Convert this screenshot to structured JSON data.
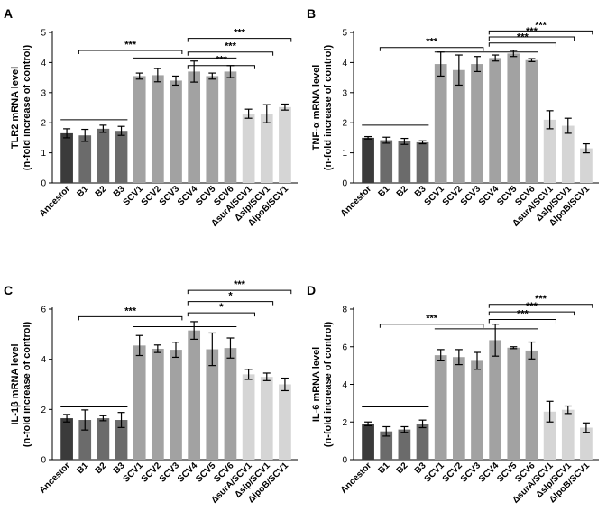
{
  "colors": {
    "dark": "#3b3b3b",
    "mid": "#6b6b6b",
    "light": "#a2a2a2",
    "pale": "#d5d5d5"
  },
  "chart_data": [
    {
      "type": "bar",
      "panel": "A",
      "title": "",
      "ylabel": [
        "TLR2 mRNA level",
        "(n-fold increase of control)"
      ],
      "ylim": [
        0,
        5
      ],
      "yticks": [
        0,
        1,
        2,
        3,
        4,
        5
      ],
      "categories": [
        "Ancestor",
        "B1",
        "B2",
        "B3",
        "SCV1",
        "SCV2",
        "SCV3",
        "SCV4",
        "SCV5",
        "SCV6",
        "ΔsurA/SCV1",
        "Δslp/SCV1",
        "ΔlpoB/SCV1"
      ],
      "values": [
        1.65,
        1.58,
        1.8,
        1.73,
        3.55,
        3.58,
        3.4,
        3.7,
        3.55,
        3.7,
        2.3,
        2.3,
        2.52
      ],
      "errors": [
        0.15,
        0.2,
        0.12,
        0.15,
        0.1,
        0.22,
        0.15,
        0.35,
        0.1,
        0.2,
        0.15,
        0.3,
        0.1
      ],
      "group_lines": [
        {
          "from": 0,
          "to": 3,
          "at": 2.1,
          "label": ""
        },
        {
          "from": 1,
          "to": 6,
          "at": 4.4,
          "label": "***"
        },
        {
          "from": 4,
          "to": 9,
          "at": 4.15,
          "label": ""
        },
        {
          "from": 7,
          "to": 10,
          "at": 3.9,
          "label": "***"
        },
        {
          "from": 7,
          "to": 11,
          "at": 4.35,
          "label": "***"
        },
        {
          "from": 7,
          "to": 12,
          "at": 4.8,
          "label": "***"
        }
      ]
    },
    {
      "type": "bar",
      "panel": "B",
      "title": "",
      "ylabel": [
        "TNF-α  mRNA level",
        "(n-fold increase of control)"
      ],
      "ylim": [
        0,
        5
      ],
      "yticks": [
        0,
        1,
        2,
        3,
        4,
        5
      ],
      "categories": [
        "Ancestor",
        "B1",
        "B2",
        "B3",
        "SCV1",
        "SCV2",
        "SCV3",
        "SCV4",
        "SCV5",
        "SCV6",
        "ΔsurA/SCV1",
        "Δslp/SCV1",
        "ΔlpoB/SCV1"
      ],
      "values": [
        1.5,
        1.42,
        1.38,
        1.35,
        3.95,
        3.75,
        3.95,
        4.15,
        4.3,
        4.08,
        2.1,
        1.9,
        1.15
      ],
      "errors": [
        0.04,
        0.1,
        0.1,
        0.05,
        0.4,
        0.5,
        0.25,
        0.1,
        0.1,
        0.05,
        0.3,
        0.25,
        0.15
      ],
      "group_lines": [
        {
          "from": 0,
          "to": 3,
          "at": 1.92,
          "label": ""
        },
        {
          "from": 1,
          "to": 6,
          "at": 4.5,
          "label": "***"
        },
        {
          "from": 4,
          "to": 9,
          "at": 4.35,
          "label": ""
        },
        {
          "from": 7,
          "to": 10,
          "at": 4.65,
          "label": "***"
        },
        {
          "from": 7,
          "to": 11,
          "at": 4.85,
          "label": "***"
        },
        {
          "from": 7,
          "to": 12,
          "at": 5.05,
          "label": "***"
        }
      ]
    },
    {
      "type": "bar",
      "panel": "C",
      "title": "",
      "ylabel": [
        "IL-1β  mRNA level",
        "(n-fold increase of control)"
      ],
      "ylim": [
        0,
        6
      ],
      "yticks": [
        0,
        2,
        4,
        6
      ],
      "categories": [
        "Ancestor",
        "B1",
        "B2",
        "B3",
        "SCV1",
        "SCV2",
        "SCV3",
        "SCV4",
        "SCV5",
        "SCV6",
        "ΔsurA/SCV1",
        "Δslp/SCV1",
        "ΔlpoB/SCV1"
      ],
      "values": [
        1.65,
        1.58,
        1.65,
        1.58,
        4.55,
        4.42,
        4.38,
        5.15,
        4.4,
        4.45,
        3.4,
        3.3,
        3.0
      ],
      "errors": [
        0.15,
        0.4,
        0.1,
        0.3,
        0.4,
        0.15,
        0.3,
        0.35,
        0.65,
        0.4,
        0.2,
        0.15,
        0.25
      ],
      "group_lines": [
        {
          "from": 0,
          "to": 3,
          "at": 2.1,
          "label": ""
        },
        {
          "from": 1,
          "to": 6,
          "at": 5.7,
          "label": "***"
        },
        {
          "from": 4,
          "to": 9,
          "at": 5.3,
          "label": ""
        },
        {
          "from": 7,
          "to": 10,
          "at": 5.85,
          "label": "*"
        },
        {
          "from": 7,
          "to": 11,
          "at": 6.3,
          "label": "*"
        },
        {
          "from": 7,
          "to": 12,
          "at": 6.75,
          "label": "***"
        }
      ]
    },
    {
      "type": "bar",
      "panel": "D",
      "title": "",
      "ylabel": [
        "IL-6 mRNA level",
        "(n-fold increase of control)"
      ],
      "ylim": [
        0,
        8
      ],
      "yticks": [
        0,
        2,
        4,
        6,
        8
      ],
      "categories": [
        "Ancestor",
        "B1",
        "B2",
        "B3",
        "SCV1",
        "SCV2",
        "SCV3",
        "SCV4",
        "SCV5",
        "SCV6",
        "ΔsurA/SCV1",
        "Δslp/SCV1",
        "ΔlpoB/SCV1"
      ],
      "values": [
        1.9,
        1.5,
        1.6,
        1.9,
        5.55,
        5.45,
        5.25,
        6.35,
        5.95,
        5.8,
        2.55,
        2.65,
        1.7
      ],
      "errors": [
        0.1,
        0.25,
        0.15,
        0.2,
        0.3,
        0.4,
        0.45,
        0.85,
        0.05,
        0.45,
        0.55,
        0.2,
        0.25
      ],
      "group_lines": [
        {
          "from": 0,
          "to": 3,
          "at": 2.8,
          "label": ""
        },
        {
          "from": 1,
          "to": 6,
          "at": 7.2,
          "label": "***"
        },
        {
          "from": 4,
          "to": 9,
          "at": 6.95,
          "label": ""
        },
        {
          "from": 7,
          "to": 10,
          "at": 7.45,
          "label": "***"
        },
        {
          "from": 7,
          "to": 11,
          "at": 7.85,
          "label": "***"
        },
        {
          "from": 7,
          "to": 12,
          "at": 8.25,
          "label": "***"
        }
      ]
    }
  ]
}
